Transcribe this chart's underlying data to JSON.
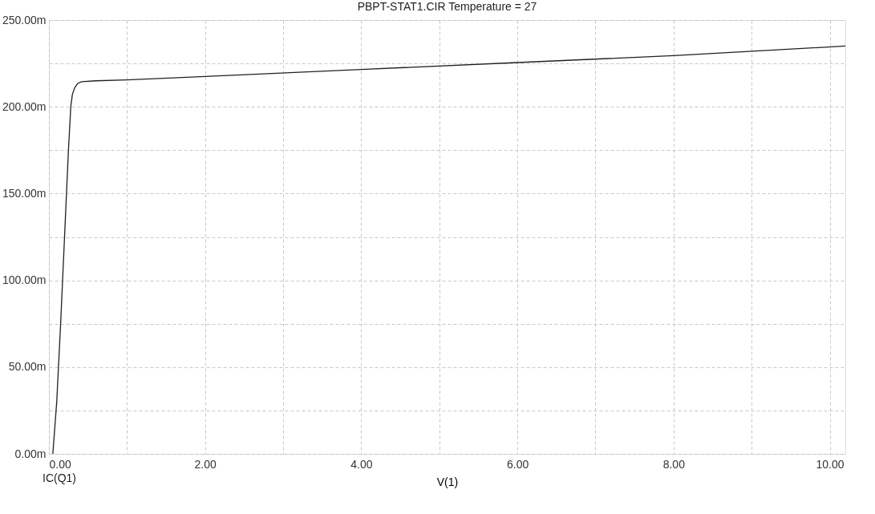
{
  "chart_data": {
    "type": "line",
    "title": "PBPT-STAT1.CIR Temperature = 27",
    "xlabel": "V(1)",
    "annotations": [
      "IC(Q1)"
    ],
    "series": [
      {
        "color": "#202020",
        "x": [
          0.05,
          0.1,
          0.15,
          0.2,
          0.25,
          0.28,
          0.3,
          0.33,
          0.37,
          0.42,
          0.6,
          1.0,
          2.0,
          4.0,
          6.0,
          8.0,
          10.2
        ],
        "values": [
          0,
          30,
          75,
          125,
          175,
          200,
          207,
          211,
          213.5,
          214.5,
          215,
          215.5,
          217.5,
          221.5,
          225.5,
          229.5,
          235
        ]
      }
    ],
    "xlim": [
      0,
      10.2
    ],
    "ylim": [
      0,
      250
    ],
    "xticks": [
      {
        "value": 0,
        "label": "0.00"
      },
      {
        "value": 1,
        "label": null
      },
      {
        "value": 2,
        "label": "2.00"
      },
      {
        "value": 3,
        "label": null
      },
      {
        "value": 4,
        "label": "4.00"
      },
      {
        "value": 5,
        "label": null
      },
      {
        "value": 6,
        "label": "6.00"
      },
      {
        "value": 7,
        "label": null
      },
      {
        "value": 8,
        "label": "8.00"
      },
      {
        "value": 9,
        "label": null
      },
      {
        "value": 10,
        "label": "10.00"
      }
    ],
    "yticks": [
      {
        "value": 0,
        "label": "0.00m"
      },
      {
        "value": 25,
        "label": null
      },
      {
        "value": 50,
        "label": "50.00m"
      },
      {
        "value": 75,
        "label": null
      },
      {
        "value": 100,
        "label": "100.00m"
      },
      {
        "value": 125,
        "label": null
      },
      {
        "value": 150,
        "label": "150.00m"
      },
      {
        "value": 175,
        "label": null
      },
      {
        "value": 200,
        "label": "200.00m"
      },
      {
        "value": 225,
        "label": null
      },
      {
        "value": 250,
        "label": "250.00m"
      }
    ],
    "grid": true,
    "marker": "none",
    "line_style": "solid"
  }
}
